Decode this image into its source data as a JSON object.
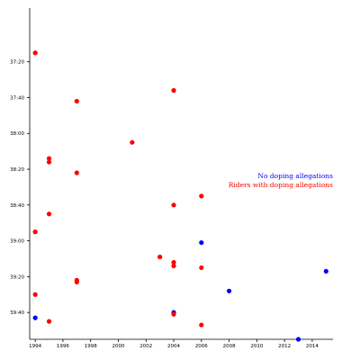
{
  "chart_data": {
    "type": "scatter",
    "title": "",
    "xlabel": "",
    "ylabel": "",
    "x_ticks": [
      1994,
      1996,
      1998,
      2000,
      2002,
      2004,
      2006,
      2008,
      2010,
      2012,
      2014
    ],
    "y_ticks": [
      "37:20",
      "37:40",
      "38:00",
      "38:20",
      "38:40",
      "39:00",
      "39:20",
      "39:40"
    ],
    "xlim": [
      1993.6,
      2015.5
    ],
    "ylim": [
      "39:55",
      "36:50"
    ],
    "y_inverted": true,
    "grid": false,
    "legend_position": "right",
    "series": [
      {
        "name": "No doping allegations",
        "color": "#0000ff",
        "points": [
          {
            "x": 1994,
            "y": "39:43"
          },
          {
            "x": 2004,
            "y": "39:40"
          },
          {
            "x": 2006,
            "y": "39:01"
          },
          {
            "x": 2008,
            "y": "39:28"
          },
          {
            "x": 2013,
            "y": "39:55"
          },
          {
            "x": 2015,
            "y": "39:17"
          }
        ]
      },
      {
        "name": "Riders with doping allegations",
        "color": "#ff0000",
        "points": [
          {
            "x": 1994,
            "y": "37:15"
          },
          {
            "x": 1994,
            "y": "38:55"
          },
          {
            "x": 1994,
            "y": "39:30"
          },
          {
            "x": 1995,
            "y": "38:14"
          },
          {
            "x": 1995,
            "y": "38:16"
          },
          {
            "x": 1995,
            "y": "38:45"
          },
          {
            "x": 1995,
            "y": "39:45"
          },
          {
            "x": 1997,
            "y": "37:42"
          },
          {
            "x": 1997,
            "y": "38:22"
          },
          {
            "x": 1997,
            "y": "39:22"
          },
          {
            "x": 1997,
            "y": "39:23"
          },
          {
            "x": 2001,
            "y": "38:05"
          },
          {
            "x": 2003,
            "y": "39:09"
          },
          {
            "x": 2004,
            "y": "37:36"
          },
          {
            "x": 2004,
            "y": "38:40"
          },
          {
            "x": 2004,
            "y": "39:12"
          },
          {
            "x": 2004,
            "y": "39:14"
          },
          {
            "x": 2004,
            "y": "39:41"
          },
          {
            "x": 2006,
            "y": "38:35"
          },
          {
            "x": 2006,
            "y": "39:15"
          },
          {
            "x": 2006,
            "y": "39:47"
          }
        ]
      }
    ]
  }
}
